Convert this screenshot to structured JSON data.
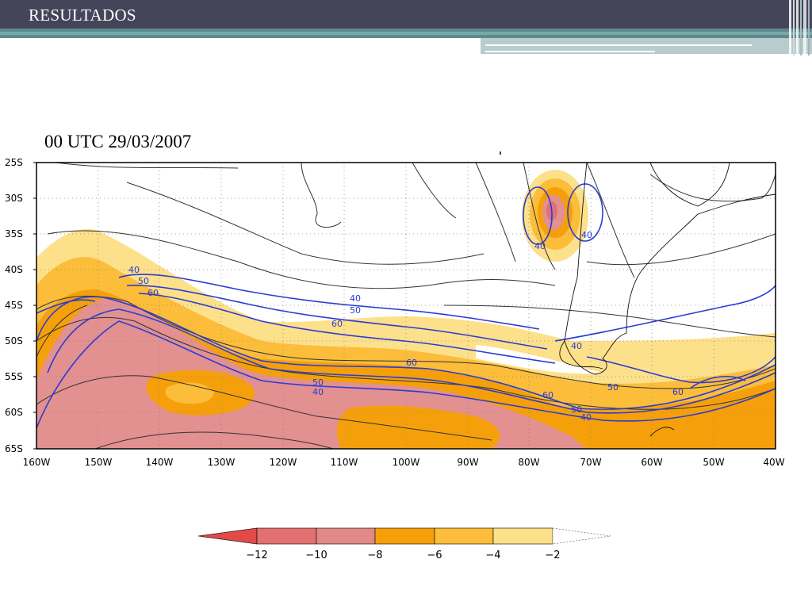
{
  "slide": {
    "title": "RESULTADOS"
  },
  "map": {
    "caption": "00 UTC 29/03/2007",
    "lat_labels": [
      "25S",
      "30S",
      "35S",
      "40S",
      "45S",
      "50S",
      "55S",
      "60S",
      "65S"
    ],
    "lon_labels": [
      "160W",
      "150W",
      "140W",
      "130W",
      "120W",
      "110W",
      "100W",
      "90W",
      "80W",
      "70W",
      "60W",
      "50W",
      "40W"
    ],
    "contour_labels": [
      {
        "text": "40"
      },
      {
        "text": "50"
      },
      {
        "text": "60"
      },
      {
        "text": "40"
      },
      {
        "text": "50"
      },
      {
        "text": "60"
      },
      {
        "text": "60"
      },
      {
        "text": "50"
      },
      {
        "text": "40"
      },
      {
        "text": "40"
      },
      {
        "text": "40"
      },
      {
        "text": "40"
      },
      {
        "text": "60"
      },
      {
        "text": "50"
      },
      {
        "text": "40"
      },
      {
        "text": "50"
      },
      {
        "text": "60"
      }
    ],
    "colors": {
      "band_minus12": "#e24a4a",
      "band_minus10": "#e07078",
      "band_minus8": "#e29090",
      "band_minus6": "#f5a00a",
      "band_minus4": "#fbbd3a",
      "band_minus2": "#fde08a",
      "isotach": "#2a3bd6",
      "streamline": "#333333"
    }
  },
  "colorbar": {
    "labels": [
      "−12",
      "−10",
      "−8",
      "−6",
      "−4",
      "−2"
    ],
    "colors": [
      "#e24a4a",
      "#e37070",
      "#e28a8a",
      "#f5a00a",
      "#fbbd3a",
      "#fde08a"
    ]
  }
}
